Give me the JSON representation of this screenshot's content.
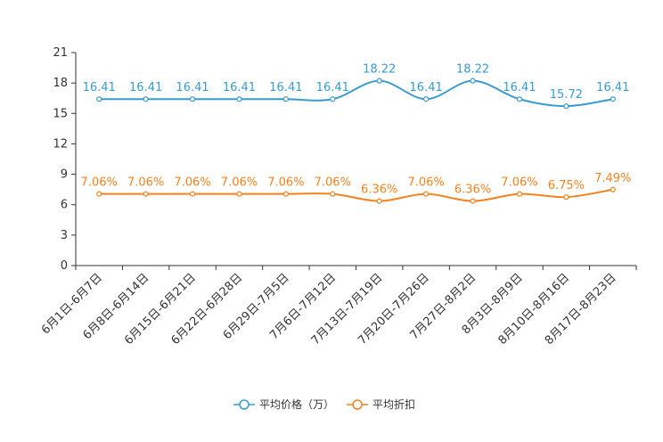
{
  "chart_data": {
    "type": "line",
    "title": "",
    "xlabel": "",
    "ylabel": "",
    "ylim": [
      0,
      21
    ],
    "yticks": [
      0,
      3,
      6,
      9,
      12,
      15,
      18,
      21
    ],
    "grid": false,
    "legend_position": "bottom-center",
    "categories": [
      "6月1日-6月7日",
      "6月8日-6月14日",
      "6月15日-6月21日",
      "6月22日-6月28日",
      "6月29日-7月5日",
      "7月6日-7月12日",
      "7月13日-7月19日",
      "7月20日-7月26日",
      "7月27日-8月2日",
      "8月3日-8月9日",
      "8月10日-8月16日",
      "8月17日-8月23日"
    ],
    "series": [
      {
        "name": "平均价格（万）",
        "color": "#3a9bd0",
        "values": [
          16.41,
          16.41,
          16.41,
          16.41,
          16.41,
          16.41,
          18.22,
          16.41,
          18.22,
          16.41,
          15.72,
          16.41
        ],
        "labels": [
          "16.41",
          "16.41",
          "16.41",
          "16.41",
          "16.41",
          "16.41",
          "18.22",
          "16.41",
          "18.22",
          "16.41",
          "15.72",
          "16.41"
        ]
      },
      {
        "name": "平均折扣",
        "color": "#f5821f",
        "values": [
          7.06,
          7.06,
          7.06,
          7.06,
          7.06,
          7.06,
          6.36,
          7.06,
          6.36,
          7.06,
          6.75,
          7.49
        ],
        "labels": [
          "7.06%",
          "7.06%",
          "7.06%",
          "7.06%",
          "7.06%",
          "7.06%",
          "6.36%",
          "7.06%",
          "6.36%",
          "7.06%",
          "6.75%",
          "7.49%"
        ]
      }
    ]
  }
}
